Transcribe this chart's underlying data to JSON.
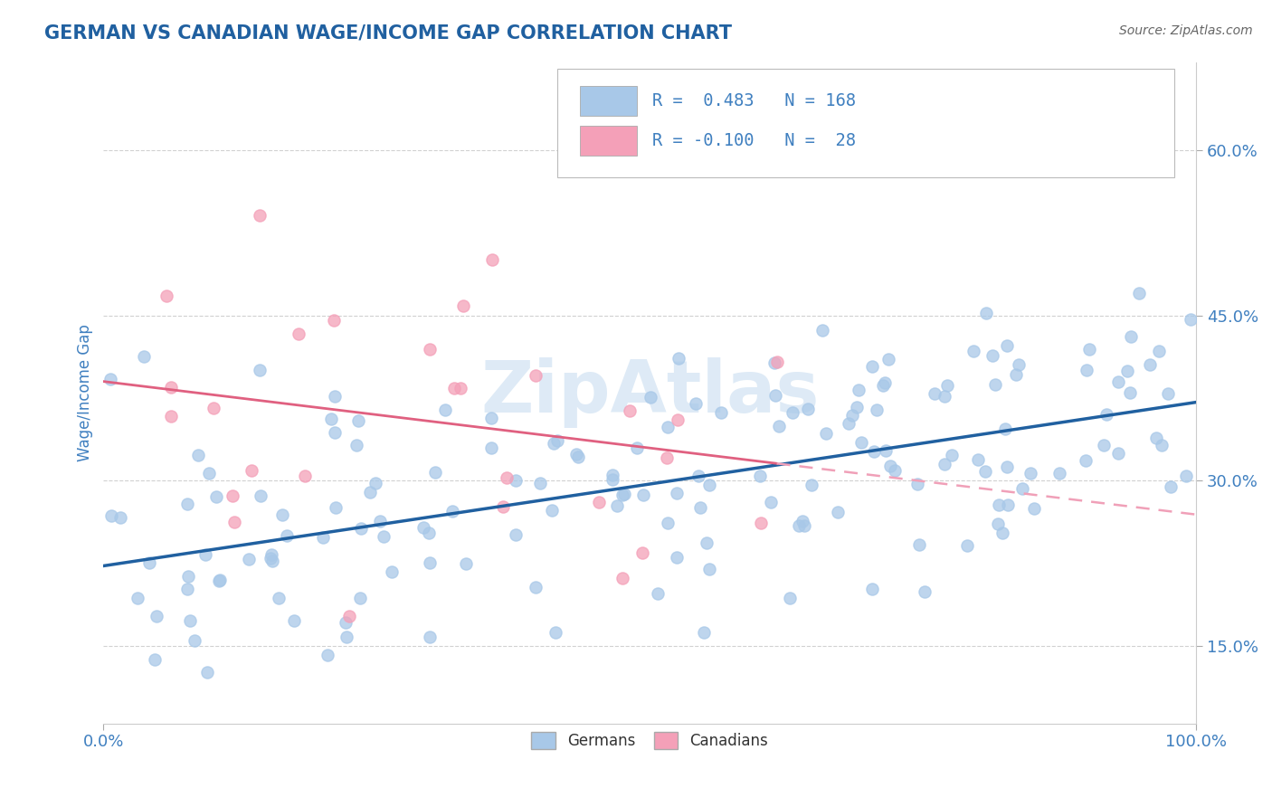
{
  "title": "GERMAN VS CANADIAN WAGE/INCOME GAP CORRELATION CHART",
  "source": "Source: ZipAtlas.com",
  "ylabel": "Wage/Income Gap",
  "xmin": 0.0,
  "xmax": 1.0,
  "ymin": 0.08,
  "ymax": 0.68,
  "yticks": [
    0.15,
    0.3,
    0.45,
    0.6
  ],
  "ytick_labels": [
    "15.0%",
    "30.0%",
    "45.0%",
    "60.0%"
  ],
  "xticks": [
    0.0,
    1.0
  ],
  "xtick_labels": [
    "0.0%",
    "100.0%"
  ],
  "german_R": 0.483,
  "german_N": 168,
  "canadian_R": -0.1,
  "canadian_N": 28,
  "german_color": "#a8c8e8",
  "canadian_color": "#f4a0b8",
  "german_line_color": "#2060a0",
  "canadian_solid_color": "#e06080",
  "canadian_dash_color": "#f0a0b8",
  "title_color": "#2060a0",
  "axis_color": "#4080c0",
  "legend_r_color": "#4080c0",
  "legend_text_color": "#333333",
  "grid_color": "#cccccc",
  "background_color": "#ffffff",
  "title_fontsize": 15,
  "legend_fontsize": 14,
  "axis_label_fontsize": 12,
  "tick_fontsize": 13,
  "watermark_color": "#c8ddf0",
  "watermark_alpha": 0.6
}
